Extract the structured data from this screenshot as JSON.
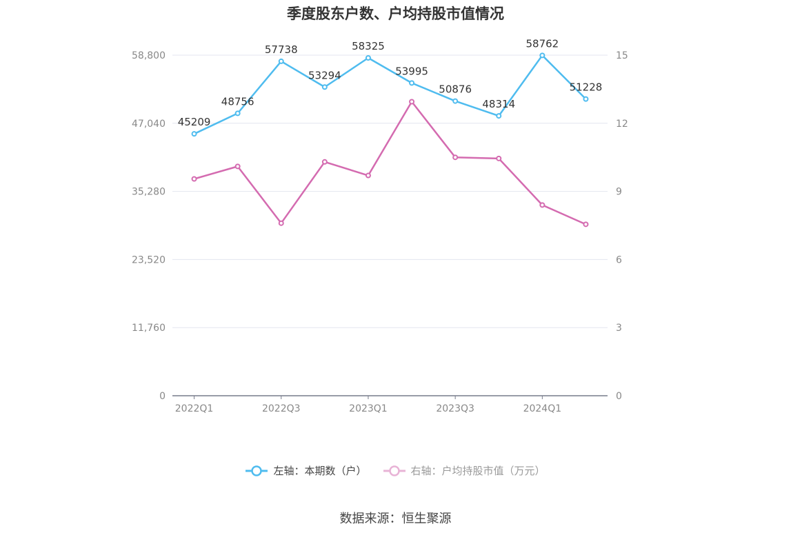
{
  "title": "季度股东户数、户均持股市值情况",
  "source": "数据来源：恒生聚源",
  "legend": {
    "left_label": "左轴：本期数（户）",
    "right_label": "右轴：户均持股市值（万元）"
  },
  "colors": {
    "left": "#4fbcef",
    "right": "#d46bb0",
    "grid": "#e3e6ef",
    "axis": "#777b8a"
  },
  "chart_data": {
    "type": "line",
    "title": "季度股东户数、户均持股市值情况",
    "categories": [
      "2022Q1",
      "2022Q2",
      "2022Q3",
      "2022Q4",
      "2023Q1",
      "2023Q2",
      "2023Q3",
      "2023Q4",
      "2024Q1",
      "2024Q2"
    ],
    "x_tick_labels": [
      "2022Q1",
      "2022Q3",
      "2023Q1",
      "2023Q3",
      "2024Q1"
    ],
    "left_axis": {
      "ticks": [
        "0",
        "11,760",
        "23,520",
        "35,280",
        "47,040",
        "58,800"
      ],
      "ylim": [
        0,
        58800
      ]
    },
    "right_axis": {
      "ticks": [
        "0",
        "3",
        "6",
        "9",
        "12",
        "15"
      ],
      "ylim": [
        0,
        15
      ]
    },
    "series": [
      {
        "name": "左轴：本期数（户）",
        "axis": "left",
        "values": [
          45209,
          48756,
          57738,
          53294,
          58325,
          53995,
          50876,
          48314,
          58762,
          51228
        ],
        "labels": [
          "45209",
          "48756",
          "57738",
          "53294",
          "58325",
          "53995",
          "50876",
          "48314",
          "58762",
          "51228"
        ]
      },
      {
        "name": "右轴：户均持股市值（万元）",
        "axis": "right",
        "values": [
          9.55,
          10.1,
          7.6,
          10.3,
          9.7,
          12.95,
          10.5,
          10.45,
          8.4,
          7.55
        ]
      }
    ],
    "grid": true,
    "legend_position": "bottom"
  }
}
